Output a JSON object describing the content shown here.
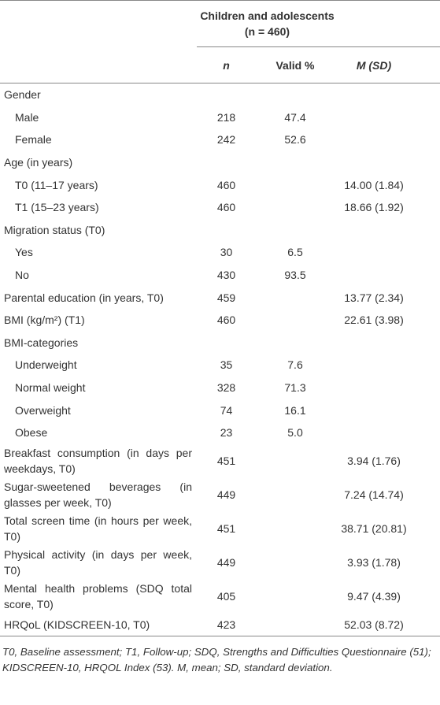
{
  "table": {
    "group_header": "Children and adolescents",
    "group_subheader": "(n = 460)",
    "columns": [
      "n",
      "Valid %",
      "M (SD)"
    ],
    "rows": [
      {
        "label": "Gender",
        "items": [
          {
            "label": "Male",
            "n": "218",
            "valid_pct": "47.4"
          },
          {
            "label": "Female",
            "n": "242",
            "valid_pct": "52.6"
          }
        ]
      },
      {
        "label": "Age (in years)",
        "items": [
          {
            "label": "T0 (11–17 years)",
            "n": "460",
            "m_sd": "14.00 (1.84)"
          },
          {
            "label": "T1 (15–23 years)",
            "n": "460",
            "m_sd": "18.66 (1.92)"
          }
        ]
      },
      {
        "label": "Migration status (T0)",
        "items": [
          {
            "label": "Yes",
            "n": "30",
            "valid_pct": "6.5"
          },
          {
            "label": "No",
            "n": "430",
            "valid_pct": "93.5"
          }
        ]
      },
      {
        "label": "Parental education (in years, T0)",
        "n": "459",
        "m_sd": "13.77 (2.34)"
      },
      {
        "label": "BMI (kg/m²) (T1)",
        "n": "460",
        "m_sd": "22.61 (3.98)"
      },
      {
        "label": "BMI-categories",
        "items": [
          {
            "label": "Underweight",
            "n": "35",
            "valid_pct": "7.6"
          },
          {
            "label": "Normal weight",
            "n": "328",
            "valid_pct": "71.3"
          },
          {
            "label": "Overweight",
            "n": "74",
            "valid_pct": "16.1"
          },
          {
            "label": "Obese",
            "n": "23",
            "valid_pct": "5.0"
          }
        ]
      },
      {
        "label": "Breakfast consumption (in days per weekdays, T0)",
        "n": "451",
        "m_sd": "3.94 (1.76)"
      },
      {
        "label": "Sugar-sweetened beverages (in glasses per week, T0)",
        "n": "449",
        "m_sd": "7.24 (14.74)"
      },
      {
        "label": "Total screen time (in hours per week, T0)",
        "n": "451",
        "m_sd": "38.71 (20.81)"
      },
      {
        "label": "Physical activity (in days per week, T0)",
        "n": "449",
        "m_sd": "3.93 (1.78)"
      },
      {
        "label": "Mental health problems (SDQ total score, T0)",
        "n": "405",
        "m_sd": "9.47 (4.39)"
      },
      {
        "label": "HRQoL (KIDSCREEN-10, T0)",
        "n": "423",
        "m_sd": "52.03 (8.72)"
      }
    ],
    "footnote": "T0, Baseline assessment; T1, Follow-up; SDQ, Strengths and Difficulties Questionnaire (51); KIDSCREEN-10, HRQOL Index (53). M, mean; SD, standard deviation."
  }
}
